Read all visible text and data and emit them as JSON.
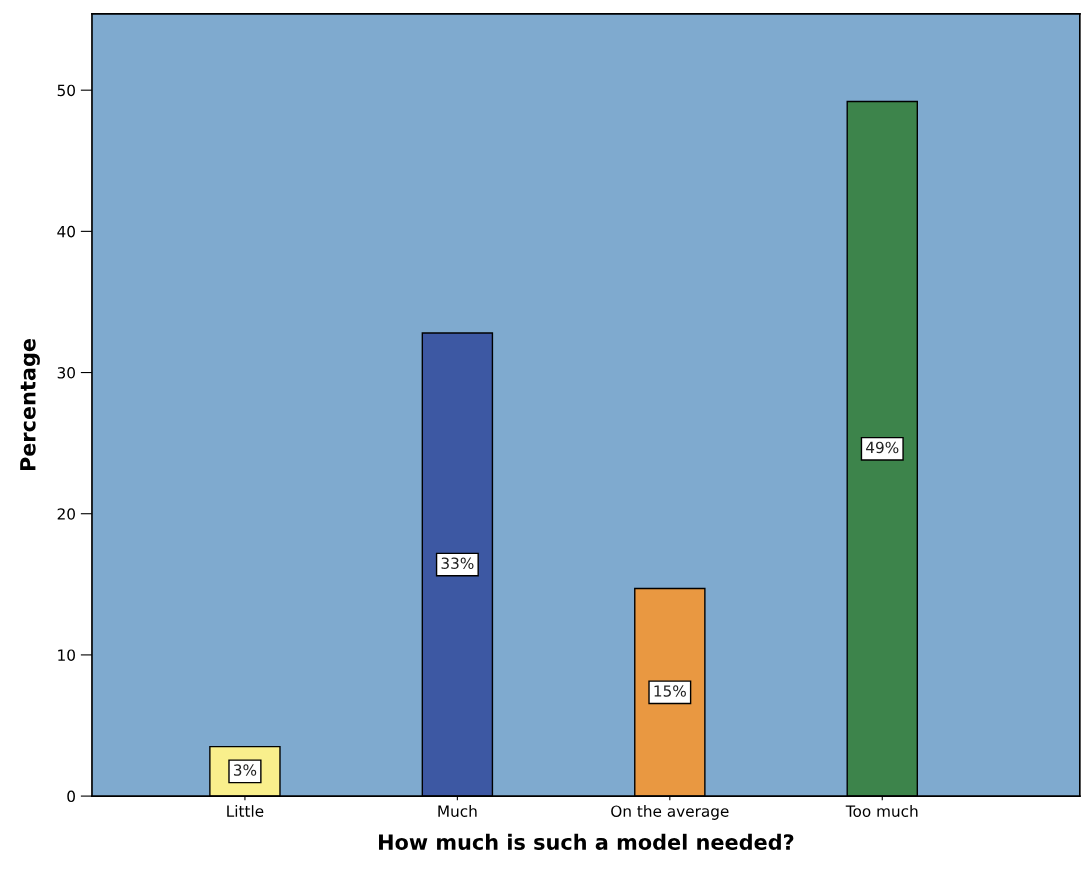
{
  "chart_data": {
    "type": "bar",
    "xlabel": "How much is such a model needed?",
    "ylabel": "Percentage",
    "categories": [
      "Little",
      "Much",
      "On the average",
      "Too much"
    ],
    "values": [
      3.5,
      32.8,
      14.7,
      49.2
    ],
    "colors": [
      "#f9ef8c",
      "#3d58a3",
      "#e99841",
      "#3d844b"
    ],
    "value_labels": [
      "3%",
      "33%",
      "15%",
      "49%"
    ],
    "ylim": [
      0,
      55.4
    ],
    "yticks": [
      0,
      10,
      20,
      30,
      40,
      50
    ],
    "grid": false,
    "legend": false
  }
}
